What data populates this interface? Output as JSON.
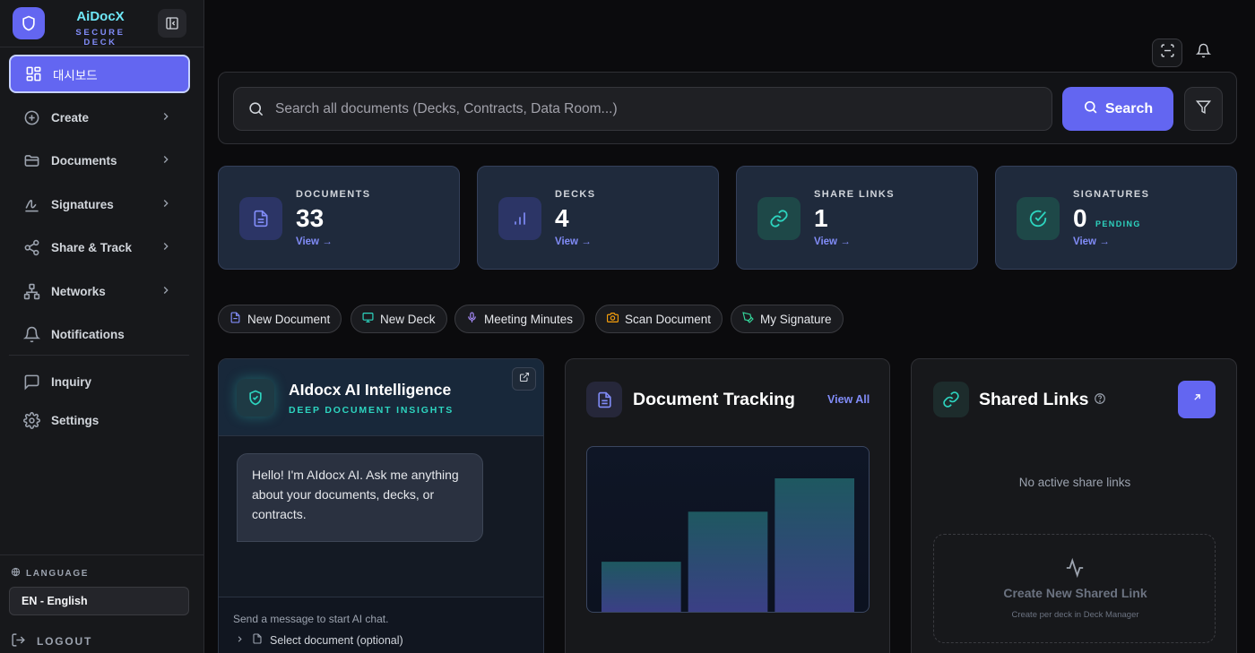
{
  "brand": {
    "name": "AiDocX",
    "tagline": "SECURE DECK"
  },
  "sidebar": {
    "items": [
      {
        "label": "대시보드",
        "icon": "dashboard-icon"
      },
      {
        "label": "Create",
        "icon": "plus-circle-icon"
      },
      {
        "label": "Documents",
        "icon": "folder-icon"
      },
      {
        "label": "Signatures",
        "icon": "signature-icon"
      },
      {
        "label": "Share & Track",
        "icon": "share-icon"
      },
      {
        "label": "Networks",
        "icon": "network-icon"
      },
      {
        "label": "Notifications",
        "icon": "bell-icon"
      },
      {
        "label": "Inquiry",
        "icon": "message-icon"
      },
      {
        "label": "Settings",
        "icon": "gear-icon"
      }
    ],
    "language_label": "LANGUAGE",
    "language_value": "EN - English",
    "logout_label": "LOGOUT"
  },
  "search": {
    "placeholder": "Search all documents (Decks, Contracts, Data Room...)",
    "button_label": "Search"
  },
  "stats": [
    {
      "label": "DOCUMENTS",
      "value": "33",
      "view": "View →",
      "color": "#818cf8"
    },
    {
      "label": "DECKS",
      "value": "4",
      "view": "View →",
      "color": "#818cf8"
    },
    {
      "label": "SHARE LINKS",
      "value": "1",
      "view": "View →",
      "color": "#2dd4bf"
    },
    {
      "label": "SIGNATURES",
      "value": "0",
      "sublabel": "PENDING",
      "view": "View →",
      "color": "#2dd4bf"
    }
  ],
  "quick_actions": [
    {
      "label": "New Document",
      "color": "#818cf8"
    },
    {
      "label": "New Deck",
      "color": "#2dd4bf"
    },
    {
      "label": "Meeting Minutes",
      "color": "#a78bfa"
    },
    {
      "label": "Scan Document",
      "color": "#f59e0b"
    },
    {
      "label": "My Signature",
      "color": "#34d399"
    }
  ],
  "ai_panel": {
    "title": "AIdocx AI Intelligence",
    "subtitle": "DEEP DOCUMENT INSIGHTS",
    "message": "Hello! I'm AIdocx AI. Ask me anything about your documents, decks, or contracts.",
    "hint": "Send a message to start AI chat.",
    "select_label": "Select document (optional)"
  },
  "tracking_panel": {
    "title": "Document Tracking",
    "view_all": "View All",
    "chart_data": {
      "type": "bar",
      "values": [
        3,
        6,
        8
      ]
    }
  },
  "links_panel": {
    "title": "Shared Links",
    "empty_text": "No active share links",
    "create_title": "Create New Shared Link",
    "create_sub": "Create per deck in Deck Manager"
  }
}
